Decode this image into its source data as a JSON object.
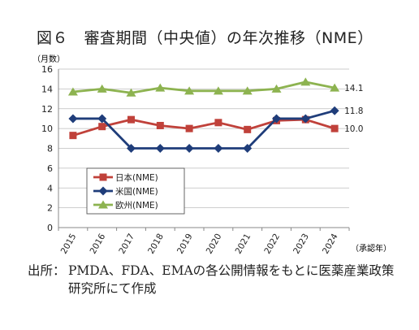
{
  "title": "図６　審査期間（中央値）の年次推移（NME）",
  "source": {
    "label": "出所：",
    "text": "PMDA、FDA、EMAの各公開情報をもとに医薬産業政策研究所にて作成"
  },
  "chart_data": {
    "type": "line",
    "title": "",
    "ylabel": "（月数）",
    "xlabel": "（承認年）",
    "ylim": [
      0,
      16
    ],
    "yticks": [
      0,
      2,
      4,
      6,
      8,
      10,
      12,
      14,
      16
    ],
    "grid": true,
    "legend_position": "lower-left",
    "categories": [
      "2015",
      "2016",
      "2017",
      "2018",
      "2019",
      "2020",
      "2021",
      "2022",
      "2023",
      "2024"
    ],
    "series": [
      {
        "name": "日本(NME)",
        "color": "#c0413a",
        "marker": "square",
        "values": [
          9.3,
          10.2,
          10.9,
          10.3,
          10.0,
          10.6,
          9.9,
          10.8,
          10.9,
          10.0
        ],
        "end_label": "10.0"
      },
      {
        "name": "米国(NME)",
        "color": "#1f3d7a",
        "marker": "diamond",
        "values": [
          11.0,
          11.0,
          8.0,
          8.0,
          8.0,
          8.0,
          8.0,
          11.0,
          11.0,
          11.8
        ],
        "end_label": "11.8"
      },
      {
        "name": "欧州(NME)",
        "color": "#8db350",
        "marker": "triangle",
        "values": [
          13.7,
          14.0,
          13.6,
          14.1,
          13.8,
          13.8,
          13.8,
          14.0,
          14.7,
          14.1
        ],
        "end_label": "14.1"
      }
    ]
  }
}
